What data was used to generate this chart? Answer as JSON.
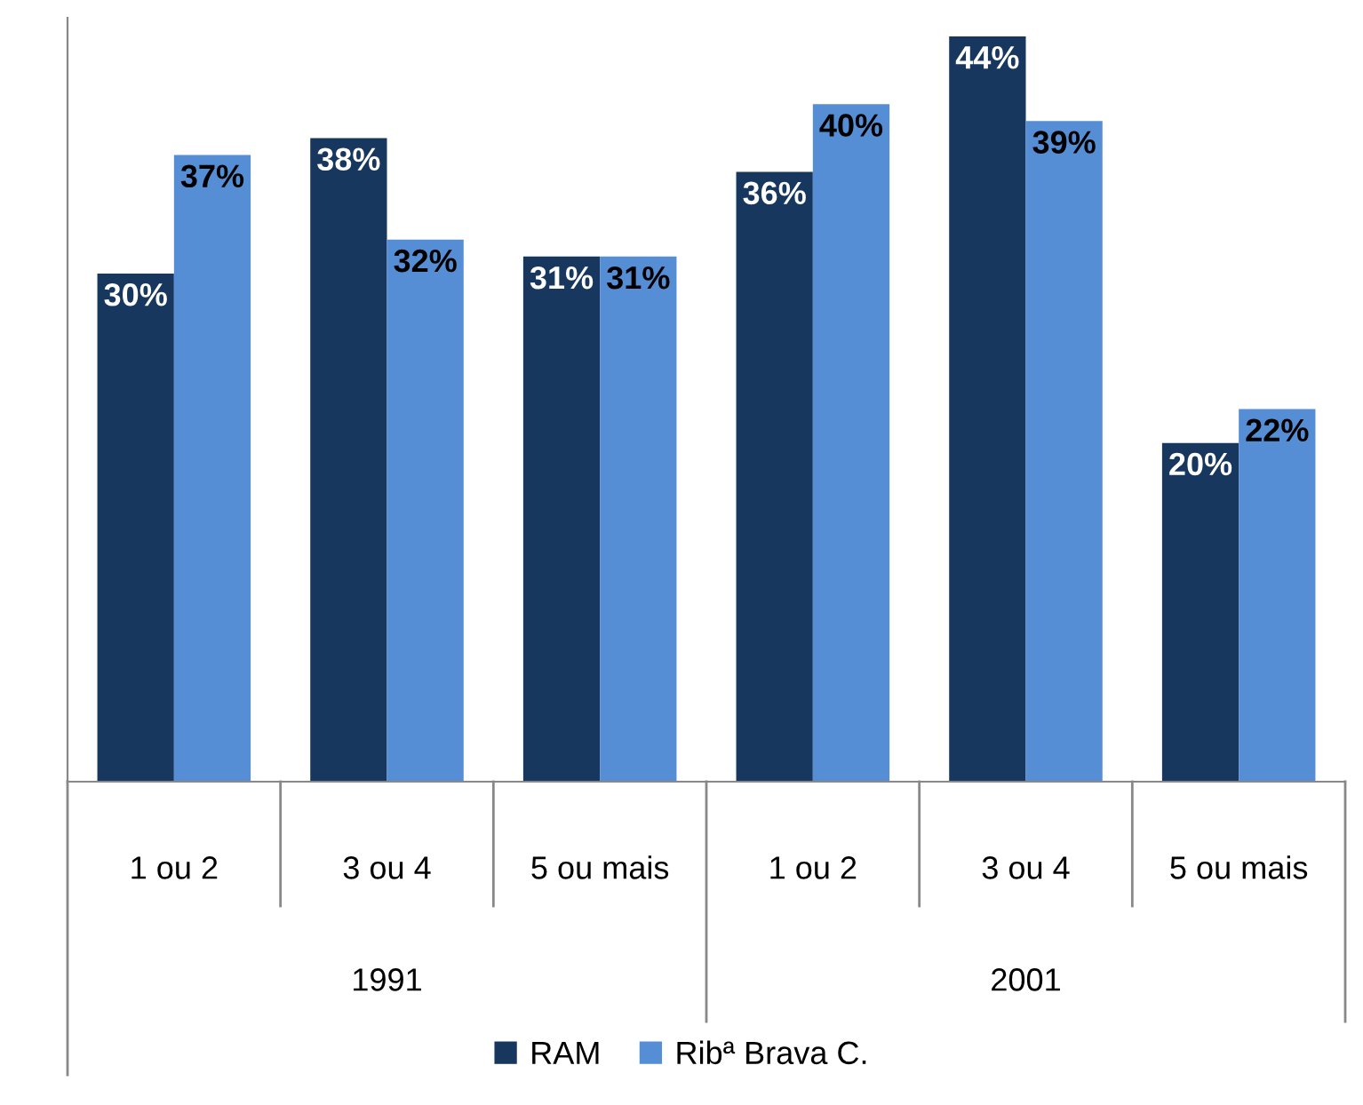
{
  "chart_data": {
    "type": "bar",
    "categories": [
      "1 ou 2",
      "3 ou 4",
      "5 ou mais",
      "1 ou 2",
      "3 ou 4",
      "5 ou mais"
    ],
    "annotations": [
      "1991",
      "2001"
    ],
    "series": [
      {
        "name": "RAM",
        "color": "#17375e",
        "values": [
          30,
          38,
          31,
          36,
          44,
          20
        ],
        "value_labels": [
          "30%",
          "38%",
          "31%",
          "36%",
          "44%",
          "20%"
        ]
      },
      {
        "name": "Ribª Brava C.",
        "color": "#558ed5",
        "values": [
          37,
          32,
          31,
          40,
          39,
          22
        ],
        "value_labels": [
          "37%",
          "32%",
          "31%",
          "40%",
          "39%",
          "22%"
        ]
      }
    ],
    "legend": "bottom"
  }
}
